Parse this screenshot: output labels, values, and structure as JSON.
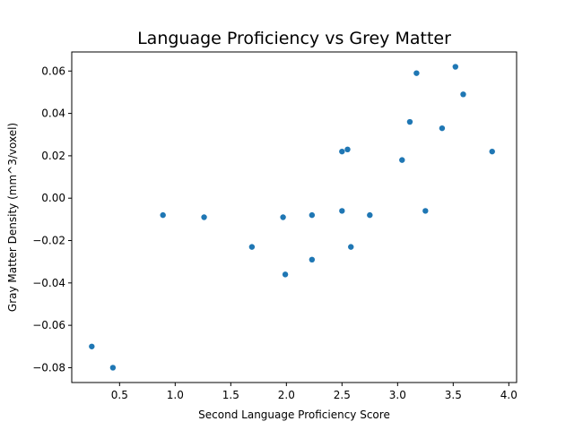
{
  "chart_data": {
    "type": "scatter",
    "title": "Language Proficiency vs Grey Matter",
    "xlabel": "Second Language Proficiency Score",
    "ylabel": "Gray Matter Density (mm^3/voxel)",
    "xlim": [
      0.07,
      4.07
    ],
    "ylim": [
      -0.087,
      0.069
    ],
    "xticks": [
      0.5,
      1.0,
      1.5,
      2.0,
      2.5,
      3.0,
      3.5,
      4.0
    ],
    "xtick_labels": [
      "0.5",
      "1.0",
      "1.5",
      "2.0",
      "2.5",
      "3.0",
      "3.5",
      "4.0"
    ],
    "yticks": [
      -0.08,
      -0.06,
      -0.04,
      -0.02,
      0.0,
      0.02,
      0.04,
      0.06
    ],
    "ytick_labels": [
      "−0.08",
      "−0.06",
      "−0.04",
      "−0.02",
      "0.00",
      "0.02",
      "0.04",
      "0.06"
    ],
    "grid": false,
    "marker_color": "#1f77b4",
    "series": [
      {
        "x": [
          0.25,
          0.44,
          0.89,
          1.26,
          1.69,
          1.97,
          1.99,
          2.23,
          2.23,
          2.5,
          2.5,
          2.55,
          2.58,
          2.75,
          3.04,
          3.11,
          3.17,
          3.25,
          3.4,
          3.52,
          3.59,
          3.85
        ],
        "y": [
          -0.07,
          -0.08,
          -0.008,
          -0.009,
          -0.023,
          -0.009,
          -0.036,
          -0.008,
          -0.029,
          0.022,
          -0.006,
          0.023,
          -0.023,
          -0.008,
          0.018,
          0.036,
          0.059,
          -0.006,
          0.033,
          0.062,
          0.049,
          0.022
        ]
      }
    ]
  }
}
